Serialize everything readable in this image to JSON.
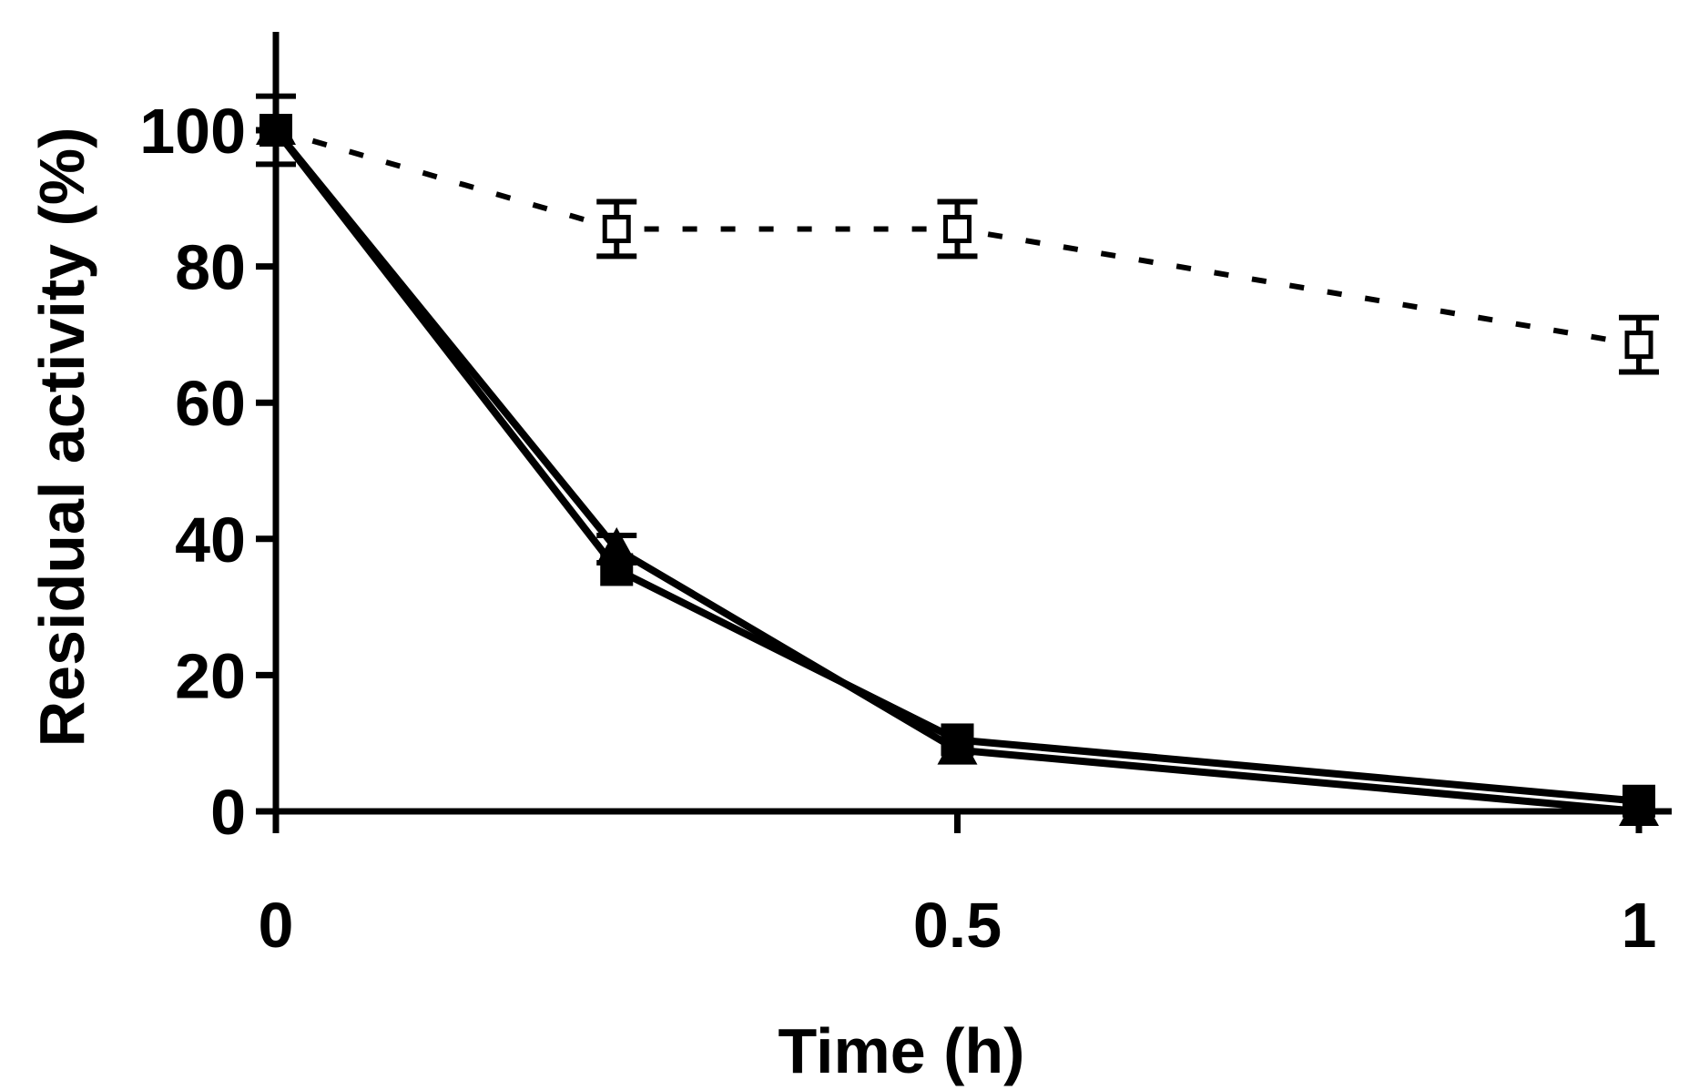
{
  "chart_data": {
    "type": "line",
    "title": "",
    "xlabel": "Time (h)",
    "ylabel": "Residual activity (%)",
    "x_ticks": [
      "0",
      "0.5",
      "1"
    ],
    "y_ticks": [
      "0",
      "20",
      "40",
      "60",
      "80",
      "100"
    ],
    "xlim": [
      0,
      1
    ],
    "ylim": [
      0,
      113
    ],
    "grid": false,
    "legend": "none",
    "series": [
      {
        "marker": "open-square",
        "line": "dotted",
        "color": "#000000",
        "x": [
          0,
          0.25,
          0.5,
          1
        ],
        "y": [
          100,
          85.5,
          85.5,
          68.5
        ],
        "err": [
          5,
          4,
          4,
          4
        ]
      },
      {
        "marker": "filled-triangle",
        "line": "solid",
        "color": "#000000",
        "x": [
          0,
          0.25,
          0.5,
          1
        ],
        "y": [
          100,
          38.5,
          9,
          0
        ],
        "err": [
          0,
          2,
          0,
          0
        ]
      },
      {
        "marker": "filled-square",
        "line": "solid",
        "color": "#000000",
        "x": [
          0,
          0.25,
          0.5,
          1
        ],
        "y": [
          100,
          35.5,
          10.5,
          1.5
        ],
        "err": [
          0,
          0,
          0,
          0
        ]
      }
    ]
  }
}
